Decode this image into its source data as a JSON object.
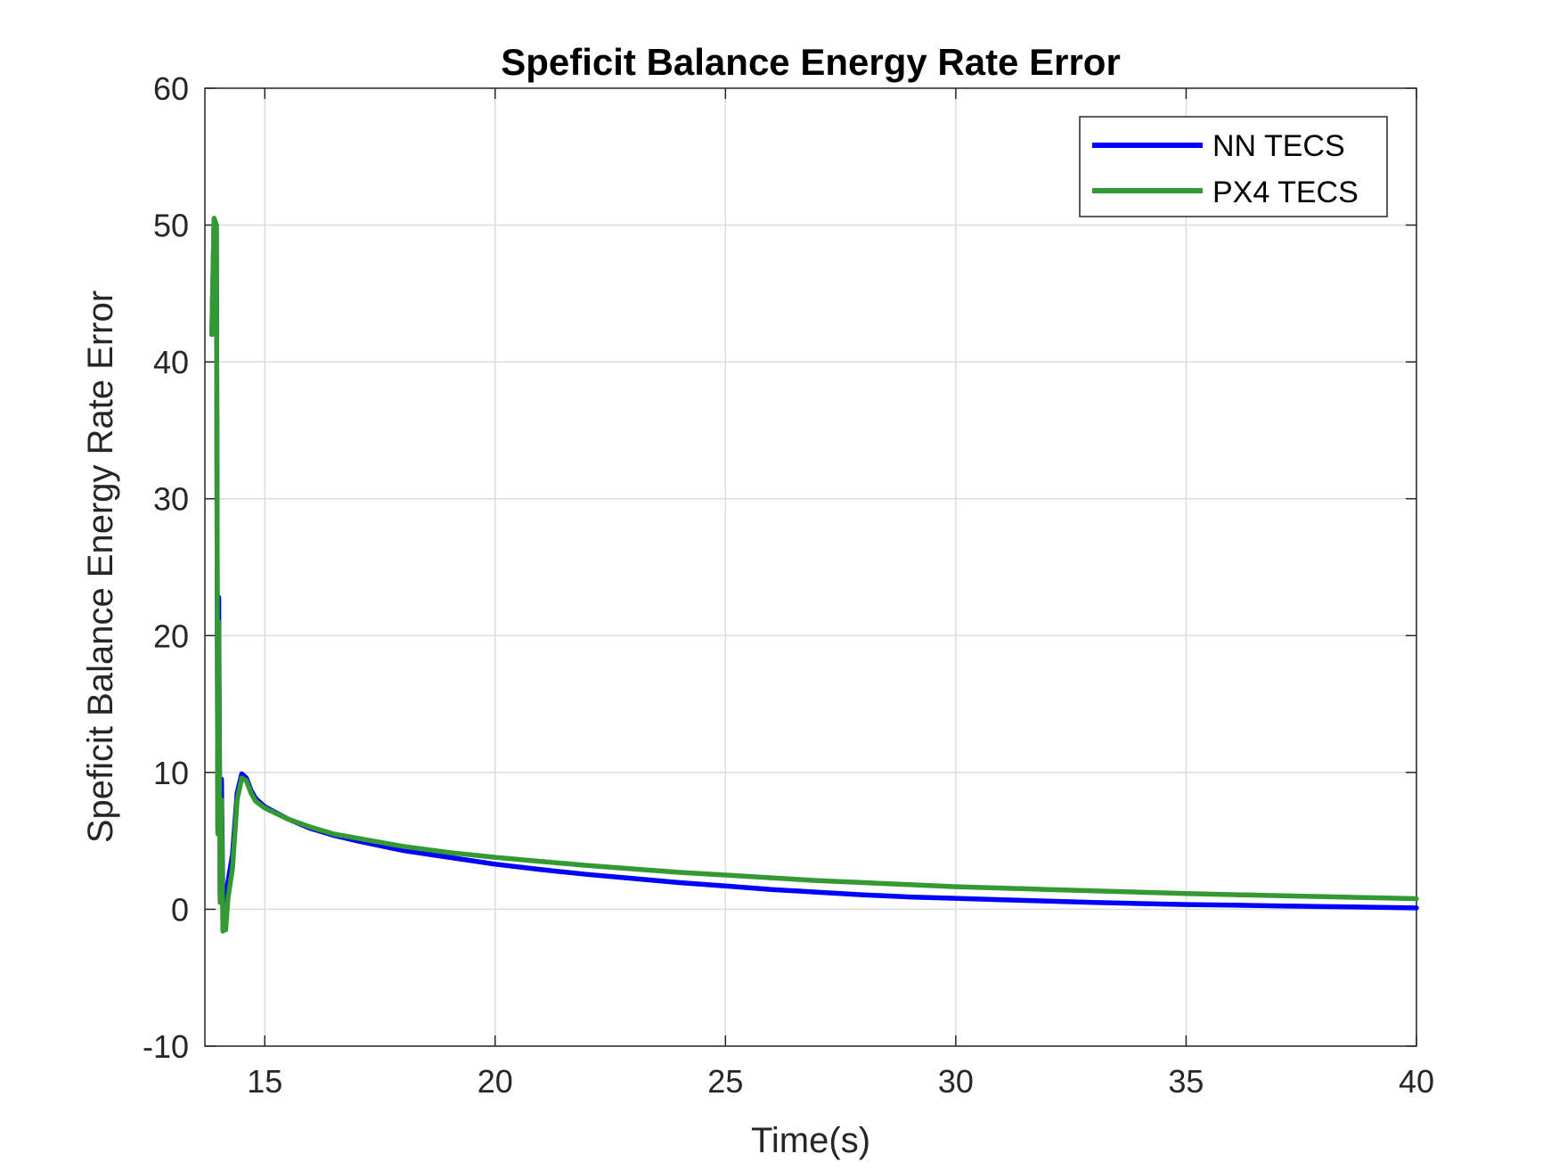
{
  "chart_data": {
    "type": "line",
    "title": "Speficit Balance Energy Rate Error",
    "xlabel": "Time(s)",
    "ylabel": "Speficit Balance Energy Rate Error",
    "xlim": [
      13.7,
      40
    ],
    "ylim": [
      -10,
      60
    ],
    "xticks": [
      15,
      20,
      25,
      30,
      35,
      40
    ],
    "yticks": [
      -10,
      0,
      10,
      20,
      30,
      40,
      50,
      60
    ],
    "xtick_labels": [
      "15",
      "20",
      "25",
      "30",
      "35",
      "40"
    ],
    "ytick_labels": [
      "-10",
      "0",
      "10",
      "20",
      "30",
      "40",
      "50",
      "60"
    ],
    "grid": true,
    "legend_position": "top-right",
    "series": [
      {
        "name": "NN TECS",
        "color": "#0000ff",
        "x": [
          13.85,
          13.9,
          13.95,
          13.98,
          14.0,
          14.03,
          14.06,
          14.09,
          14.12,
          14.15,
          14.2,
          14.3,
          14.4,
          14.5,
          14.6,
          14.7,
          14.8,
          15.0,
          15.5,
          16.0,
          16.5,
          17,
          18,
          19,
          20,
          21,
          22,
          23,
          24,
          25,
          26,
          27,
          28,
          29,
          30,
          31,
          32,
          33,
          34,
          35,
          36,
          37,
          38,
          39,
          40
        ],
        "y": [
          42,
          50.3,
          50,
          6,
          22.8,
          1,
          9.5,
          0.3,
          -1.5,
          0.5,
          2,
          4,
          8.5,
          9.9,
          9.6,
          8.7,
          8.1,
          7.5,
          6.6,
          5.9,
          5.4,
          5.0,
          4.3,
          3.8,
          3.3,
          2.9,
          2.55,
          2.25,
          1.95,
          1.7,
          1.45,
          1.25,
          1.05,
          0.9,
          0.8,
          0.7,
          0.6,
          0.5,
          0.42,
          0.35,
          0.3,
          0.25,
          0.2,
          0.15,
          0.1
        ]
      },
      {
        "name": "PX4 TECS",
        "color": "#339933",
        "x": [
          13.85,
          13.9,
          13.95,
          13.98,
          14.0,
          14.03,
          14.06,
          14.09,
          14.12,
          14.15,
          14.2,
          14.3,
          14.4,
          14.5,
          14.6,
          14.7,
          14.8,
          15.0,
          15.5,
          16.0,
          16.5,
          17,
          18,
          19,
          20,
          21,
          22,
          23,
          24,
          25,
          26,
          27,
          28,
          29,
          30,
          31,
          32,
          33,
          34,
          35,
          36,
          37,
          38,
          39,
          40
        ],
        "y": [
          42,
          50.5,
          50,
          5.5,
          21,
          0.5,
          8,
          -1.6,
          0,
          -1.5,
          0.8,
          3,
          8,
          9.6,
          9.4,
          8.5,
          7.9,
          7.4,
          6.6,
          6.0,
          5.5,
          5.2,
          4.6,
          4.15,
          3.8,
          3.5,
          3.2,
          2.95,
          2.7,
          2.5,
          2.3,
          2.1,
          1.95,
          1.8,
          1.65,
          1.55,
          1.45,
          1.35,
          1.25,
          1.15,
          1.07,
          1.0,
          0.92,
          0.85,
          0.78
        ]
      }
    ]
  }
}
